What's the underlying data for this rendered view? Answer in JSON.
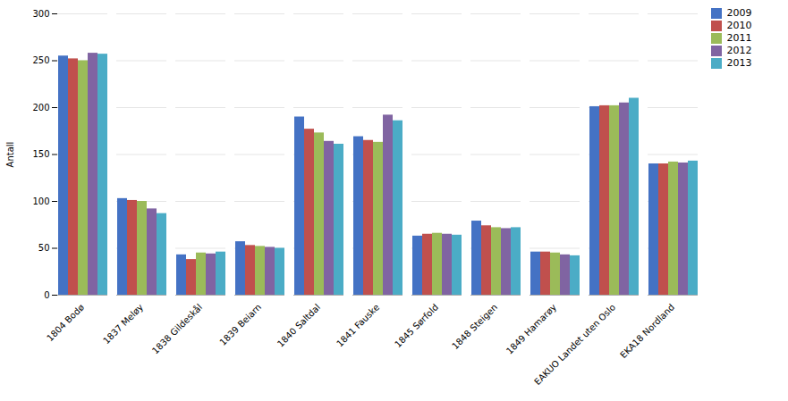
{
  "chart_data": {
    "type": "bar",
    "categories": [
      "1804 Bodø",
      "1837 Meløy",
      "1838 Gildeskål",
      "1839 Beiarn",
      "1840 Saltdal",
      "1841 Fauske",
      "1845 Sørfold",
      "1848 Steigen",
      "1849 Hamarøy",
      "EAKUO Landet uten Oslo",
      "EKA18 Nordland"
    ],
    "series": [
      {
        "name": "2009",
        "color": "#4472C4",
        "values": [
          255,
          103,
          43,
          57,
          190,
          169,
          63,
          79,
          46,
          201,
          140
        ]
      },
      {
        "name": "2010",
        "color": "#C0504D",
        "values": [
          252,
          101,
          38,
          53,
          177,
          165,
          65,
          74,
          46,
          202,
          140
        ]
      },
      {
        "name": "2011",
        "color": "#9BBB59",
        "values": [
          250,
          100,
          45,
          52,
          173,
          163,
          66,
          72,
          45,
          202,
          142
        ]
      },
      {
        "name": "2012",
        "color": "#8064A2",
        "values": [
          258,
          92,
          44,
          51,
          164,
          192,
          65,
          71,
          43,
          205,
          141
        ]
      },
      {
        "name": "2013",
        "color": "#4BACC6",
        "values": [
          257,
          87,
          46,
          50,
          161,
          186,
          64,
          72,
          42,
          210,
          143
        ]
      }
    ],
    "ylabel": "Antall",
    "ylim": [
      0,
      300
    ],
    "yticks": [
      0,
      50,
      100,
      150,
      200,
      250,
      300
    ],
    "grid": true,
    "legend": "right"
  }
}
